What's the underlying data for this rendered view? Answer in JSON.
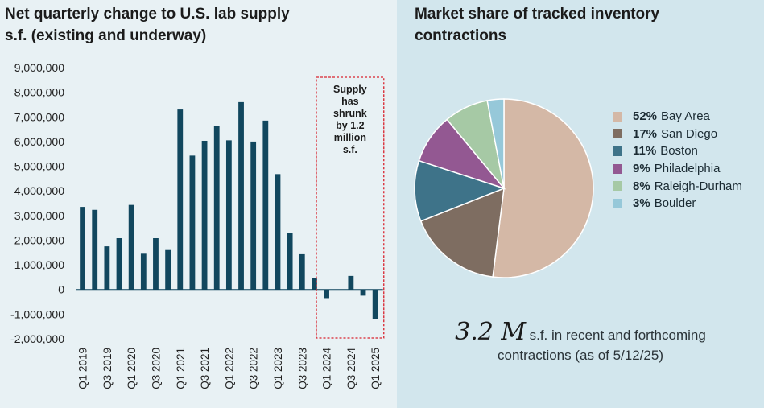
{
  "left_chart": {
    "title_line1": "Net quarterly change to U.S. lab supply",
    "title_line2": "s.f. (existing and underway)",
    "annotation": [
      "Supply",
      "has",
      "shrunk",
      "by 1.2",
      "million",
      "s.f."
    ],
    "colors": {
      "bar": "#11475e",
      "box": "#d9232e"
    }
  },
  "right_chart": {
    "title_line1": "Market share of tracked inventory",
    "title_line2": "contractions",
    "big_number": "3.2 M",
    "note_line1": "s.f. in recent and forthcoming",
    "note_line2": "contractions (as of 5/12/25)"
  },
  "chart_data": [
    {
      "type": "bar",
      "title": "Net quarterly change to U.S. lab supply s.f. (existing and underway)",
      "xlabel": "",
      "ylabel": "",
      "ylim": [
        -2000000,
        9000000
      ],
      "yticks": [
        9000000,
        8000000,
        7000000,
        6000000,
        5000000,
        4000000,
        3000000,
        2000000,
        1000000,
        0,
        -1000000,
        -2000000
      ],
      "ytick_labels": [
        "9,000,000",
        "8,000,000",
        "7,000,000",
        "6,000,000",
        "5,000,000",
        "4,000,000",
        "3,000,000",
        "2,000,000",
        "1,000,000",
        "0",
        "-1,000,000",
        "-2,000,000"
      ],
      "categories": [
        "Q1 2019",
        "Q2 2019",
        "Q3 2019",
        "Q4 2019",
        "Q1 2020",
        "Q2 2020",
        "Q3 2020",
        "Q4 2020",
        "Q1 2021",
        "Q2 2021",
        "Q3 2021",
        "Q4 2021",
        "Q1 2022",
        "Q2 2022",
        "Q3 2022",
        "Q4 2022",
        "Q1 2023",
        "Q2 2023",
        "Q3 2023",
        "Q4 2023",
        "Q1 2024",
        "Q2 2024",
        "Q3 2024",
        "Q4 2024",
        "Q1 2025"
      ],
      "xtick_labels_shown": [
        "Q1 2019",
        "Q3 2019",
        "Q1 2020",
        "Q3 2020",
        "Q1 2021",
        "Q3 2021",
        "Q1 2022",
        "Q3 2022",
        "Q1 2023",
        "Q3 2023",
        "Q1 2024",
        "Q3 2024",
        "Q1 2025"
      ],
      "values": [
        3350000,
        3230000,
        1750000,
        2080000,
        3430000,
        1450000,
        2080000,
        1600000,
        7300000,
        5430000,
        6030000,
        6620000,
        6050000,
        7600000,
        6000000,
        6850000,
        4680000,
        2280000,
        1430000,
        450000,
        -350000,
        0,
        550000,
        -250000,
        -1200000
      ]
    },
    {
      "type": "pie",
      "title": "Market share of tracked inventory contractions",
      "labels": [
        "Bay Area",
        "San Diego",
        "Boston",
        "Philadelphia",
        "Raleigh-Durham",
        "Boulder"
      ],
      "values": [
        52,
        17,
        11,
        9,
        8,
        3
      ],
      "value_labels": [
        "52%",
        "17%",
        "11%",
        "9%",
        "8%",
        "3%"
      ],
      "colors": [
        "#d4b8a6",
        "#7e6d61",
        "#3e7389",
        "#935892",
        "#a6c9a5",
        "#96c8d9"
      ]
    }
  ]
}
